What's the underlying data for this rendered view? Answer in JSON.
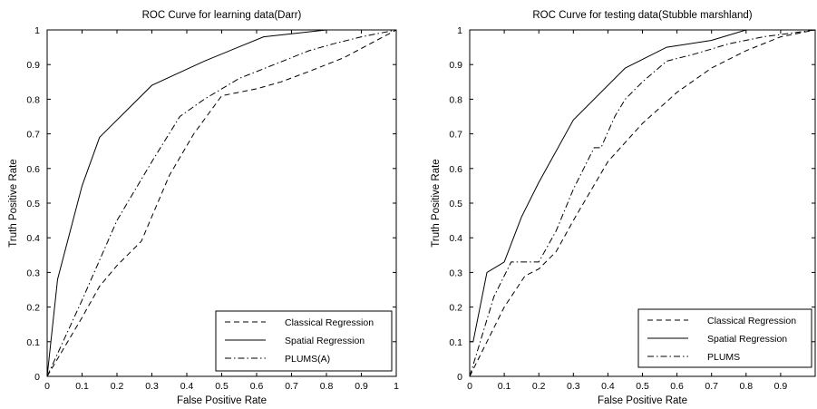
{
  "chart_data": [
    {
      "type": "line",
      "title": "ROC Curve for learning data(Darr)",
      "xlabel": "False Positive Rate",
      "ylabel": "Truth Positive Rate",
      "xlim": [
        0,
        1
      ],
      "ylim": [
        0,
        1
      ],
      "xticks": [
        "0",
        "0.1",
        "0.2",
        "0.3",
        "0.4",
        "0.5",
        "0.6",
        "0.7",
        "0.8",
        "0.9",
        "1"
      ],
      "yticks": [
        "0",
        "0.1",
        "0.2",
        "0.3",
        "0.4",
        "0.5",
        "0.6",
        "0.7",
        "0.8",
        "0.9",
        "1"
      ],
      "grid": false,
      "legend_position": "bottom-right",
      "series": [
        {
          "name": "Classical Regression",
          "style": "dashed",
          "x": [
            0,
            0.1,
            0.15,
            0.2,
            0.27,
            0.35,
            0.42,
            0.5,
            0.6,
            0.67,
            0.75,
            0.85,
            1.0
          ],
          "y": [
            0,
            0.17,
            0.26,
            0.32,
            0.39,
            0.58,
            0.7,
            0.81,
            0.83,
            0.85,
            0.88,
            0.92,
            1.0
          ]
        },
        {
          "name": "Spatial Regression",
          "style": "solid",
          "x": [
            0,
            0.03,
            0.1,
            0.15,
            0.3,
            0.45,
            0.62,
            0.8,
            1.0
          ],
          "y": [
            0,
            0.28,
            0.55,
            0.69,
            0.84,
            0.91,
            0.98,
            1.0,
            1.0
          ]
        },
        {
          "name": "PLUMS(A)",
          "style": "dashdot",
          "x": [
            0,
            0.1,
            0.2,
            0.3,
            0.38,
            0.45,
            0.55,
            0.65,
            0.75,
            0.82,
            0.9,
            1.0
          ],
          "y": [
            0,
            0.22,
            0.45,
            0.62,
            0.75,
            0.8,
            0.86,
            0.9,
            0.94,
            0.96,
            0.98,
            1.0
          ]
        }
      ]
    },
    {
      "type": "line",
      "title": "ROC Curve for testing data(Stubble marshland)",
      "xlabel": "False Positive Rate",
      "ylabel": "Truth Positive Rate",
      "xlim": [
        0,
        1
      ],
      "ylim": [
        0,
        1
      ],
      "xticks": [
        "0",
        "0.1",
        "0.2",
        "0.3",
        "0.4",
        "0.5",
        "0.6",
        "0.7",
        "0.8",
        "0.9"
      ],
      "yticks": [
        "0",
        "0.1",
        "0.2",
        "0.3",
        "0.4",
        "0.5",
        "0.6",
        "0.7",
        "0.8",
        "0.9",
        "1"
      ],
      "grid": false,
      "legend_position": "bottom-right",
      "series": [
        {
          "name": "Classical Regression",
          "style": "dashed",
          "x": [
            0,
            0.1,
            0.16,
            0.2,
            0.25,
            0.3,
            0.4,
            0.5,
            0.6,
            0.7,
            0.8,
            0.9,
            1.0
          ],
          "y": [
            0,
            0.2,
            0.29,
            0.31,
            0.36,
            0.45,
            0.62,
            0.73,
            0.82,
            0.89,
            0.94,
            0.98,
            1.0
          ]
        },
        {
          "name": "Spatial Regression",
          "style": "solid",
          "x": [
            0,
            0.01,
            0.05,
            0.1,
            0.15,
            0.2,
            0.3,
            0.45,
            0.57,
            0.7,
            0.8,
            1.0
          ],
          "y": [
            0.1,
            0.1,
            0.3,
            0.33,
            0.46,
            0.56,
            0.74,
            0.89,
            0.95,
            0.97,
            1.0,
            1.0
          ]
        },
        {
          "name": "PLUMS",
          "style": "dashdot",
          "x": [
            0,
            0.07,
            0.12,
            0.16,
            0.2,
            0.25,
            0.3,
            0.36,
            0.38,
            0.42,
            0.45,
            0.5,
            0.57,
            0.65,
            0.75,
            0.85,
            1.0
          ],
          "y": [
            0,
            0.23,
            0.33,
            0.33,
            0.33,
            0.42,
            0.54,
            0.66,
            0.66,
            0.75,
            0.8,
            0.85,
            0.91,
            0.93,
            0.96,
            0.98,
            1.0
          ]
        }
      ]
    }
  ]
}
